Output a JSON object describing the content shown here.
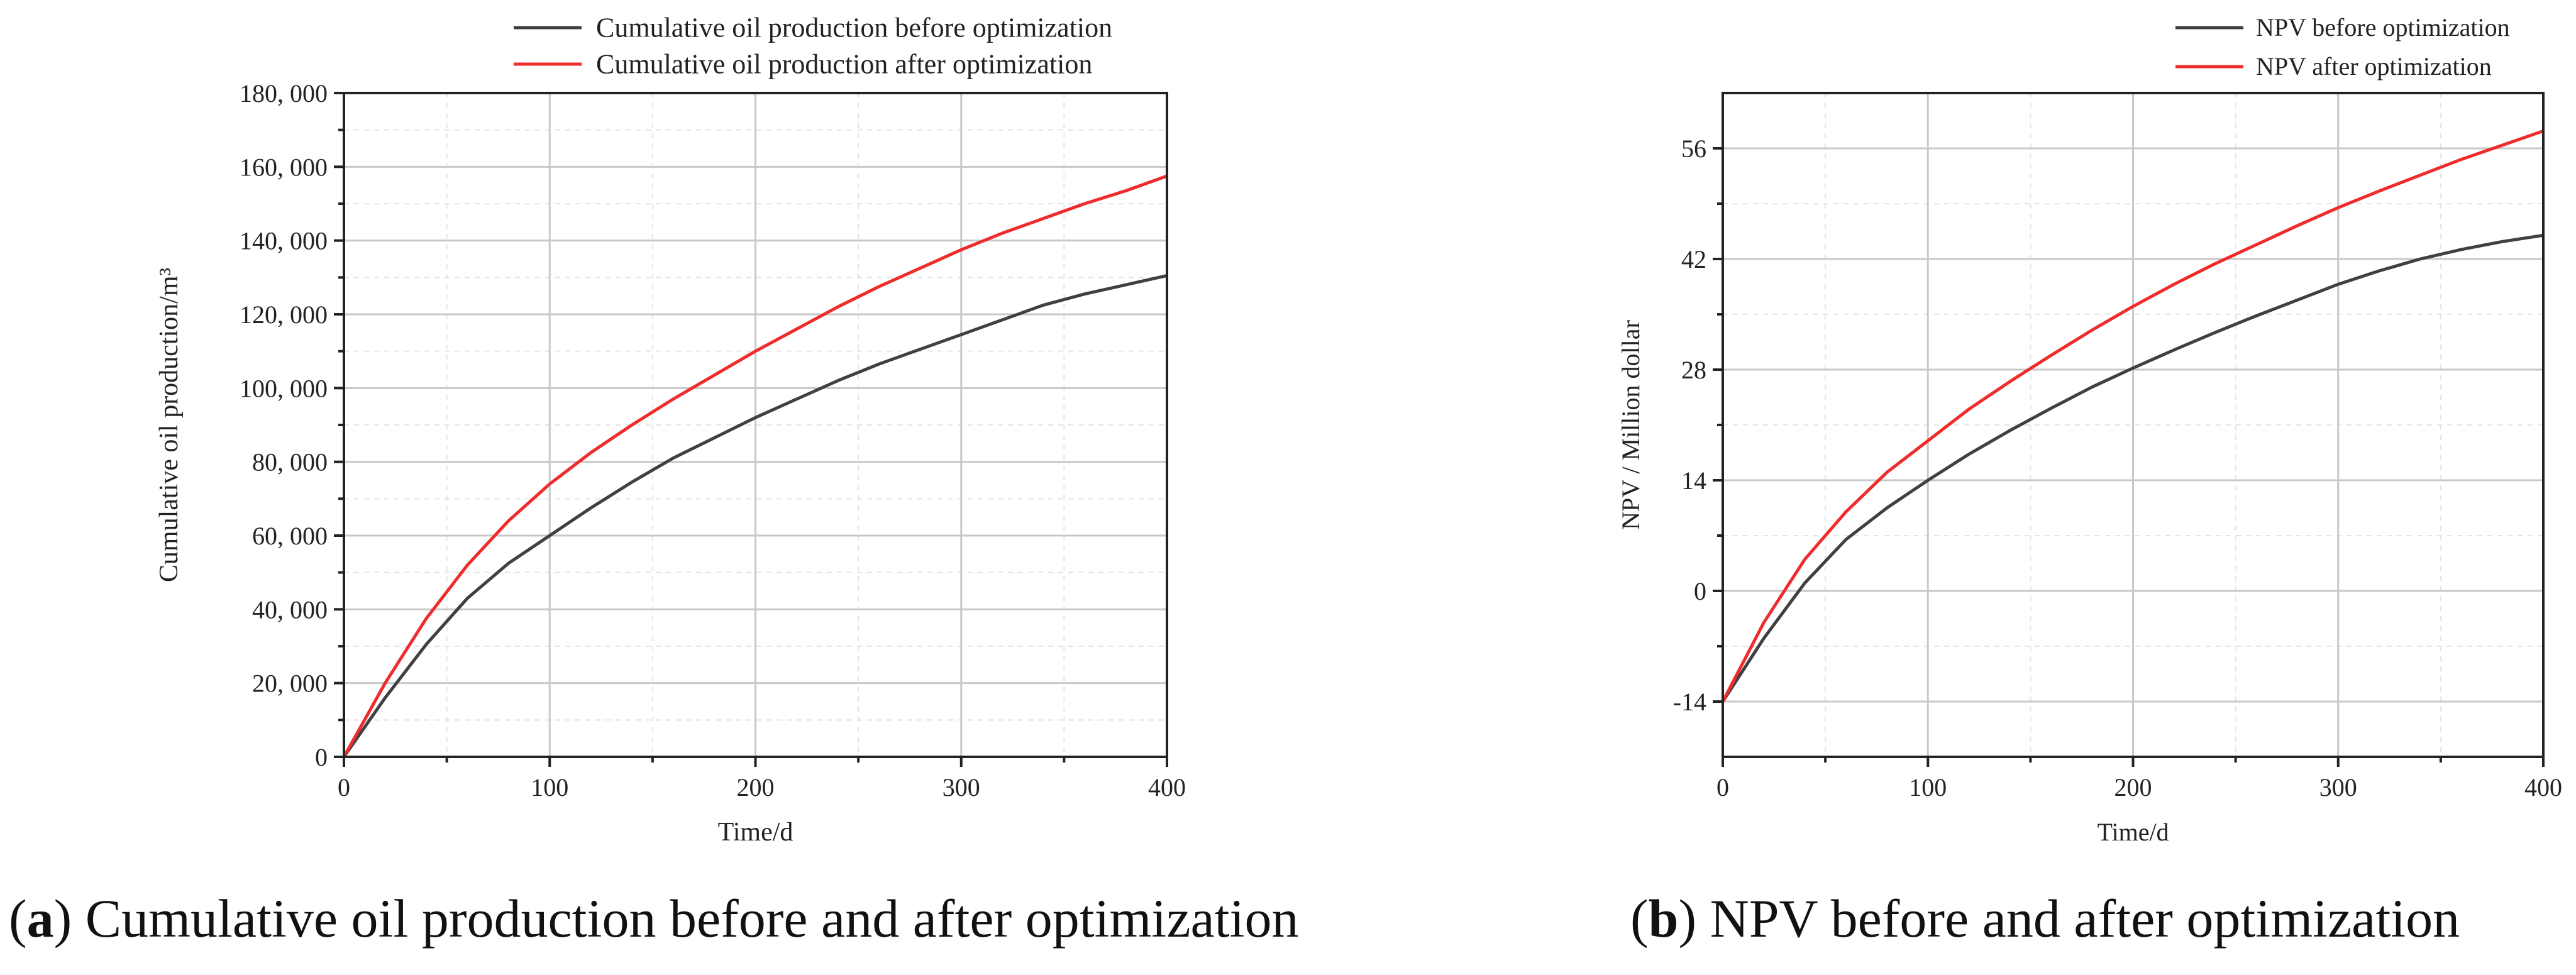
{
  "chart_data": [
    {
      "type": "line",
      "id": "a",
      "title": "",
      "xlabel": "Time/d",
      "ylabel": "Cumulative oil production/m³",
      "xlim": [
        0,
        400
      ],
      "ylim": [
        0,
        180000
      ],
      "xticks": [
        0,
        100,
        200,
        300,
        400
      ],
      "yticks": [
        0,
        20000,
        40000,
        60000,
        80000,
        100000,
        120000,
        140000,
        160000,
        180000
      ],
      "ytick_labels": [
        "0",
        "20, 000",
        "40, 000",
        "60, 000",
        "80, 000",
        "100, 000",
        "120, 000",
        "140, 000",
        "160, 000",
        "180, 000"
      ],
      "grid": true,
      "legend": "top-center",
      "series": [
        {
          "name": "Cumulative oil production before optimization",
          "color": "#404040",
          "x": [
            0,
            20,
            40,
            60,
            80,
            100,
            120,
            140,
            160,
            180,
            200,
            220,
            240,
            260,
            280,
            300,
            320,
            340,
            360,
            380,
            400
          ],
          "y": [
            0,
            16000,
            30500,
            43000,
            52500,
            60000,
            67500,
            74500,
            81000,
            86500,
            92000,
            97000,
            102000,
            106500,
            110500,
            114500,
            118500,
            122500,
            125500,
            128000,
            130500
          ]
        },
        {
          "name": "Cumulative oil production after optimization",
          "color": "#ef2b2b",
          "x": [
            0,
            20,
            40,
            60,
            80,
            100,
            120,
            140,
            160,
            180,
            200,
            220,
            240,
            260,
            280,
            300,
            320,
            340,
            360,
            380,
            400
          ],
          "y": [
            0,
            20000,
            37500,
            52000,
            64000,
            74000,
            82500,
            90000,
            97000,
            103500,
            110000,
            116000,
            122000,
            127500,
            132500,
            137500,
            142000,
            146000,
            150000,
            153500,
            157500
          ]
        }
      ],
      "caption_label": "a",
      "caption_text": "Cumulative oil production before and after optimization"
    },
    {
      "type": "line",
      "id": "b",
      "title": "",
      "xlabel": "Time/d",
      "ylabel": "NPV / Million dollar",
      "xlim": [
        0,
        400
      ],
      "ylim": [
        -21,
        63
      ],
      "xticks": [
        0,
        100,
        200,
        300,
        400
      ],
      "yticks": [
        -14,
        0,
        14,
        28,
        42,
        56
      ],
      "ytick_labels": [
        "-14",
        "0",
        "14",
        "28",
        "42",
        "56"
      ],
      "grid": true,
      "legend": "top-right",
      "series": [
        {
          "name": "NPV before optimization",
          "color": "#404040",
          "x": [
            0,
            20,
            40,
            60,
            80,
            100,
            120,
            140,
            160,
            180,
            200,
            220,
            240,
            260,
            280,
            300,
            320,
            340,
            360,
            380,
            400
          ],
          "y": [
            -14,
            -6,
            1,
            6.5,
            10.5,
            14,
            17.3,
            20.3,
            23.1,
            25.8,
            28.2,
            30.5,
            32.7,
            34.8,
            36.8,
            38.8,
            40.5,
            42,
            43.2,
            44.2,
            45
          ]
        },
        {
          "name": "NPV after optimization",
          "color": "#ef2b2b",
          "x": [
            0,
            20,
            40,
            60,
            80,
            100,
            120,
            140,
            160,
            180,
            200,
            220,
            240,
            260,
            280,
            300,
            320,
            340,
            360,
            380,
            400
          ],
          "y": [
            -14,
            -4,
            4,
            10,
            15,
            19,
            23,
            26.5,
            29.8,
            33,
            36,
            38.8,
            41.4,
            43.8,
            46.2,
            48.5,
            50.6,
            52.6,
            54.6,
            56.4,
            58.2
          ]
        }
      ],
      "caption_label": "b",
      "caption_text": "NPV before and after optimization"
    }
  ]
}
